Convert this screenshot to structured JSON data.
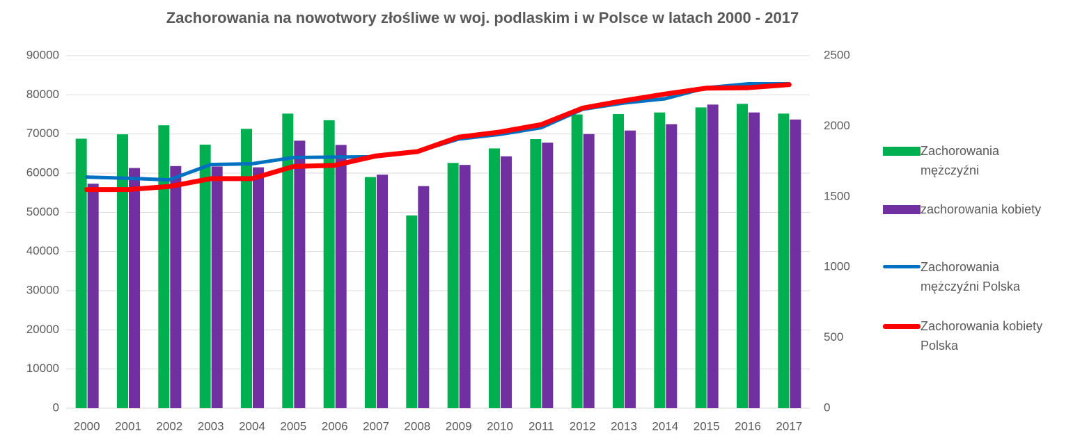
{
  "chart_data": {
    "type": "bar-line",
    "title": "Zachorowania na nowotwory złośliwe w woj. podlaskim i w Polsce w latach 2000 - 2017",
    "categories": [
      "2000",
      "2001",
      "2002",
      "2003",
      "2004",
      "2005",
      "2006",
      "2007",
      "2008",
      "2009",
      "2010",
      "2011",
      "2012",
      "2013",
      "2014",
      "2015",
      "2016",
      "2017"
    ],
    "series": [
      {
        "name": "Zachorowania mężczyźni",
        "type": "bar",
        "axis": "y2",
        "color": "#00b050",
        "values": [
          1911,
          1942,
          2006,
          1869,
          1981,
          2089,
          2042,
          1639,
          1367,
          1739,
          1842,
          1908,
          2083,
          2086,
          2097,
          2133,
          2158,
          2089
        ]
      },
      {
        "name": "zachorowania kobiety",
        "type": "bar",
        "axis": "y2",
        "color": "#7030a0",
        "values": [
          1592,
          1703,
          1717,
          1714,
          1708,
          1897,
          1867,
          1656,
          1575,
          1725,
          1786,
          1883,
          1944,
          1969,
          2014,
          2153,
          2097,
          2047
        ]
      },
      {
        "name": "Zachorowania mężczyźni Polska",
        "type": "line",
        "color": "#0070c0",
        "values": [
          59000,
          58700,
          58300,
          62200,
          62400,
          64000,
          64100,
          64200,
          65500,
          68700,
          69900,
          71600,
          76300,
          77900,
          79000,
          81800,
          82800,
          82800
        ]
      },
      {
        "name": "Zachorowania kobiety Polska",
        "type": "line",
        "color": "#ff0000",
        "values": [
          55800,
          55800,
          56600,
          58600,
          58600,
          61700,
          62000,
          64400,
          65500,
          69200,
          70500,
          72400,
          76600,
          78500,
          80200,
          81700,
          81800,
          82600
        ]
      }
    ],
    "ylim": [
      0,
      90000
    ],
    "yticks": [
      0,
      10000,
      20000,
      30000,
      40000,
      50000,
      60000,
      70000,
      80000,
      90000
    ],
    "y2lim": [
      0,
      2500
    ],
    "y2ticks": [
      0,
      500,
      1000,
      1500,
      2000,
      2500
    ],
    "grid": true,
    "legend": "right"
  }
}
